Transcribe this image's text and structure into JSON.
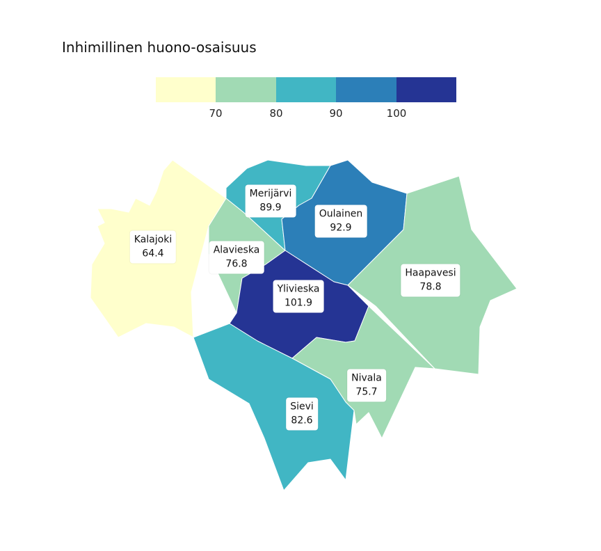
{
  "title": "Inhimillinen huono-osaisuus",
  "legend": {
    "colors": [
      "#ffffcc",
      "#a1dab4",
      "#41b6c4",
      "#2c7fb8",
      "#253494"
    ],
    "ticks": [
      "70",
      "80",
      "90",
      "100"
    ]
  },
  "regions": [
    {
      "name": "Kalajoki",
      "value": "64.4",
      "color": "#ffffcc"
    },
    {
      "name": "Merijärvi",
      "value": "89.9",
      "color": "#41b6c4"
    },
    {
      "name": "Oulainen",
      "value": "92.9",
      "color": "#2c7fb8"
    },
    {
      "name": "Alavieska",
      "value": "76.8",
      "color": "#a1dab4"
    },
    {
      "name": "Haapavesi",
      "value": "78.8",
      "color": "#a1dab4"
    },
    {
      "name": "Ylivieska",
      "value": "101.9",
      "color": "#253494"
    },
    {
      "name": "Nivala",
      "value": "75.7",
      "color": "#a1dab4"
    },
    {
      "name": "Sievi",
      "value": "82.6",
      "color": "#41b6c4"
    }
  ]
}
